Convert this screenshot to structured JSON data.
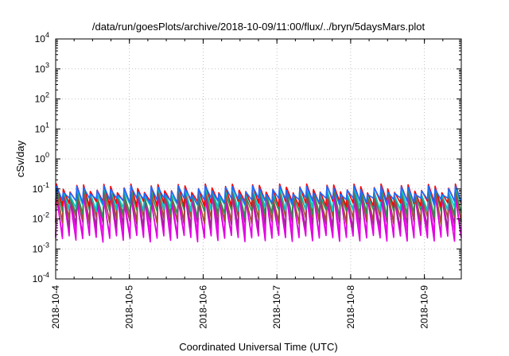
{
  "chart_data": {
    "type": "line",
    "title": "/data/run/goesPlots/archive/2018-10-09/11:00/flux/../bryn/5daysMars.plot",
    "xlabel": "Coordinated Universal Time (UTC)",
    "ylabel": "cSv/day",
    "y_scale": "log",
    "ylim": [
      0.0001,
      10000
    ],
    "xlim": [
      "2018-10-04T00:00",
      "2018-10-09T12:00"
    ],
    "grid": true,
    "x_tick_labels": [
      "2018-10-4",
      "2018-10-5",
      "2018-10-6",
      "2018-10-7",
      "2018-10-8",
      "2018-10-9"
    ],
    "y_ticks": [
      {
        "base": "10",
        "exp": "4"
      },
      {
        "base": "10",
        "exp": "3"
      },
      {
        "base": "10",
        "exp": "2"
      },
      {
        "base": "10",
        "exp": "1"
      },
      {
        "base": "10",
        "exp": "0"
      },
      {
        "base": "10",
        "exp": "-1"
      },
      {
        "base": "10",
        "exp": "-2"
      },
      {
        "base": "10",
        "exp": "-3"
      },
      {
        "base": "10",
        "exp": "-4"
      }
    ],
    "cycle_hours": 2.2,
    "series": [
      {
        "color": "#ff00ff",
        "peak": 0.085,
        "trough": 0.004
      },
      {
        "color": "#e000e0",
        "peak": 0.07,
        "trough": 0.0028
      },
      {
        "color": "#9b2a8f",
        "peak": 0.09,
        "trough": 0.008
      },
      {
        "color": "#a0522d",
        "peak": 0.1,
        "trough": 0.012
      },
      {
        "color": "#2e8b57",
        "peak": 0.11,
        "trough": 0.02
      },
      {
        "color": "#00c8c8",
        "peak": 0.12,
        "trough": 0.03
      },
      {
        "color": "#ff0000",
        "peak": 0.15,
        "trough": 0.04
      },
      {
        "color": "#1e6bff",
        "peak": 0.13,
        "trough": 0.05
      }
    ]
  }
}
